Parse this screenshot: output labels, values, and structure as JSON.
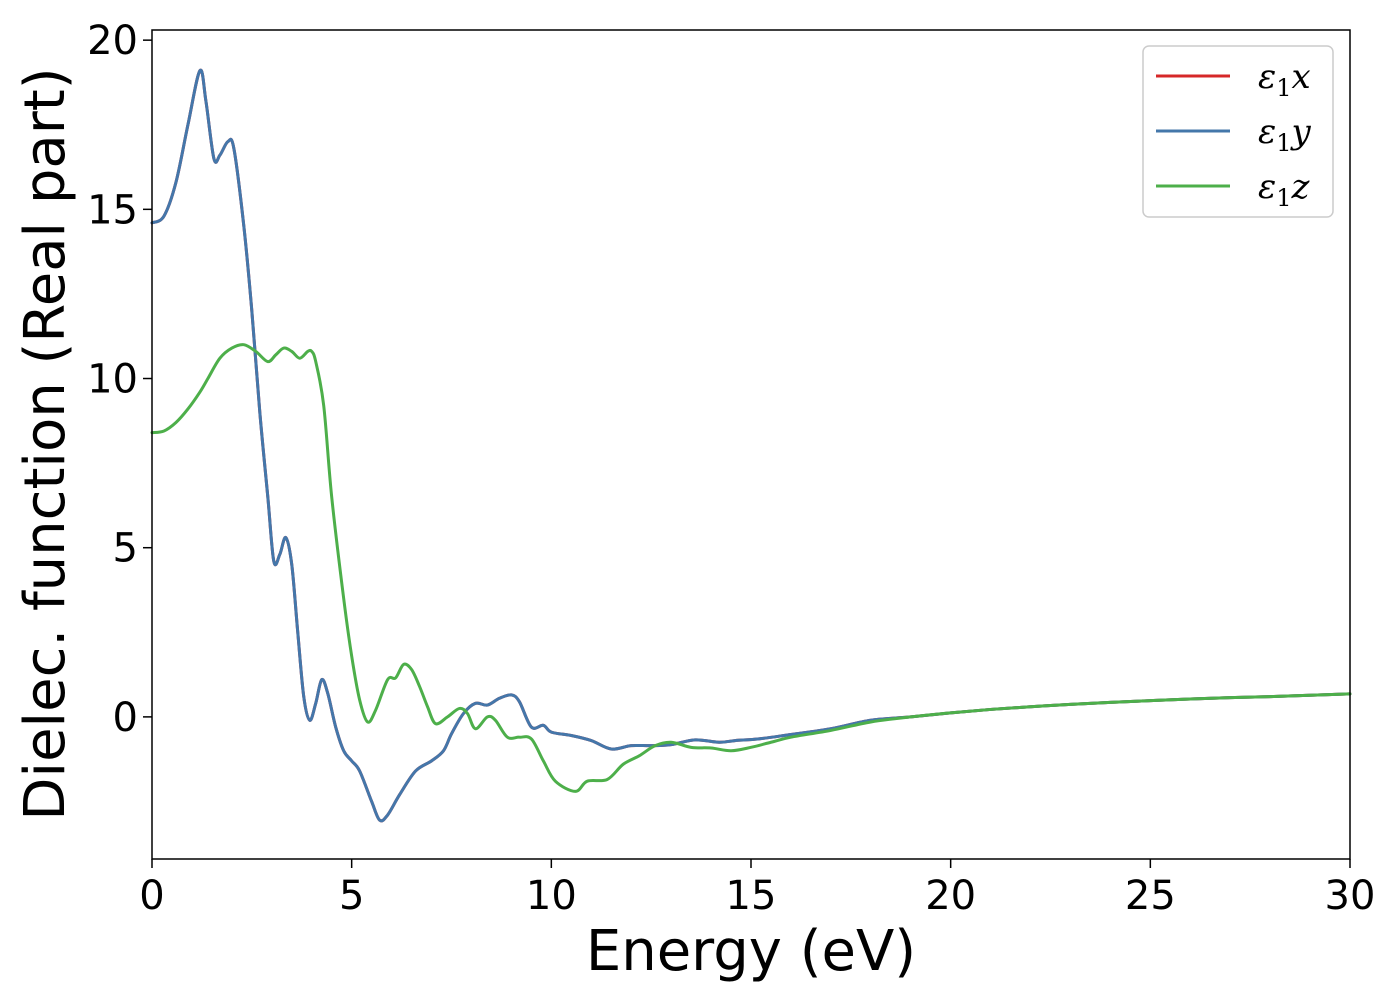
{
  "chart_data": {
    "type": "line",
    "title": "",
    "xlabel": "Energy (eV)",
    "ylabel": "Dielec. function (Real part)",
    "xlim": [
      0,
      30
    ],
    "ylim": [
      -4.2,
      20.3
    ],
    "xticks": [
      0,
      5,
      10,
      15,
      20,
      25,
      30
    ],
    "yticks": [
      0,
      5,
      10,
      15,
      20
    ],
    "xtick_labels": [
      "0",
      "5",
      "10",
      "15",
      "20",
      "25",
      "30"
    ],
    "ytick_labels": [
      "0",
      "5",
      "10",
      "15",
      "20"
    ],
    "grid": false,
    "legend": {
      "placement": "top-right",
      "entries": [
        {
          "symbol": "ε",
          "sub": "1",
          "var": "x",
          "color": "#d62728"
        },
        {
          "symbol": "ε",
          "sub": "1",
          "var": "y",
          "color": "#4477aa"
        },
        {
          "symbol": "ε",
          "sub": "1",
          "var": "z",
          "color": "#4daf4a"
        }
      ]
    },
    "series": [
      {
        "key": "x",
        "color": "#d62728",
        "points": [
          [
            0,
            14.6
          ],
          [
            0.3,
            14.8
          ],
          [
            0.6,
            15.8
          ],
          [
            0.9,
            17.5
          ],
          [
            1.2,
            19.1
          ],
          [
            1.35,
            18.2
          ],
          [
            1.55,
            16.5
          ],
          [
            1.7,
            16.6
          ],
          [
            1.9,
            17.0
          ],
          [
            2.05,
            16.8
          ],
          [
            2.3,
            14.5
          ],
          [
            2.5,
            12.0
          ],
          [
            2.7,
            9.0
          ],
          [
            2.9,
            6.5
          ],
          [
            3.05,
            4.6
          ],
          [
            3.2,
            4.8
          ],
          [
            3.35,
            5.3
          ],
          [
            3.5,
            4.5
          ],
          [
            3.65,
            2.5
          ],
          [
            3.8,
            0.6
          ],
          [
            3.95,
            -0.1
          ],
          [
            4.1,
            0.4
          ],
          [
            4.25,
            1.1
          ],
          [
            4.4,
            0.7
          ],
          [
            4.6,
            -0.3
          ],
          [
            4.8,
            -1.0
          ],
          [
            5.0,
            -1.3
          ],
          [
            5.2,
            -1.6
          ],
          [
            5.5,
            -2.5
          ],
          [
            5.7,
            -3.05
          ],
          [
            5.9,
            -2.9
          ],
          [
            6.2,
            -2.3
          ],
          [
            6.6,
            -1.6
          ],
          [
            7.0,
            -1.3
          ],
          [
            7.3,
            -1.0
          ],
          [
            7.5,
            -0.5
          ],
          [
            7.8,
            0.1
          ],
          [
            8.1,
            0.4
          ],
          [
            8.4,
            0.35
          ],
          [
            8.7,
            0.55
          ],
          [
            9.0,
            0.65
          ],
          [
            9.2,
            0.45
          ],
          [
            9.5,
            -0.3
          ],
          [
            9.8,
            -0.25
          ],
          [
            10.0,
            -0.45
          ],
          [
            10.5,
            -0.55
          ],
          [
            11.0,
            -0.7
          ],
          [
            11.5,
            -0.95
          ],
          [
            12.0,
            -0.85
          ],
          [
            12.5,
            -0.85
          ],
          [
            13.0,
            -0.82
          ],
          [
            13.6,
            -0.68
          ],
          [
            14.2,
            -0.75
          ],
          [
            14.6,
            -0.7
          ],
          [
            15.2,
            -0.65
          ],
          [
            16.0,
            -0.52
          ],
          [
            17.0,
            -0.35
          ],
          [
            18.0,
            -0.1
          ],
          [
            19.0,
            0.0
          ],
          [
            20.0,
            0.12
          ],
          [
            21.0,
            0.22
          ],
          [
            22.0,
            0.3
          ],
          [
            23.0,
            0.37
          ],
          [
            24.0,
            0.43
          ],
          [
            25.0,
            0.48
          ],
          [
            26.0,
            0.53
          ],
          [
            27.0,
            0.57
          ],
          [
            28.0,
            0.6
          ],
          [
            29.0,
            0.64
          ],
          [
            30.0,
            0.68
          ]
        ]
      },
      {
        "key": "y",
        "color": "#4477aa",
        "points": [
          [
            0,
            14.6
          ],
          [
            0.3,
            14.8
          ],
          [
            0.6,
            15.8
          ],
          [
            0.9,
            17.5
          ],
          [
            1.2,
            19.1
          ],
          [
            1.35,
            18.2
          ],
          [
            1.55,
            16.5
          ],
          [
            1.7,
            16.6
          ],
          [
            1.9,
            17.0
          ],
          [
            2.05,
            16.8
          ],
          [
            2.3,
            14.5
          ],
          [
            2.5,
            12.0
          ],
          [
            2.7,
            9.0
          ],
          [
            2.9,
            6.5
          ],
          [
            3.05,
            4.6
          ],
          [
            3.2,
            4.8
          ],
          [
            3.35,
            5.3
          ],
          [
            3.5,
            4.5
          ],
          [
            3.65,
            2.5
          ],
          [
            3.8,
            0.6
          ],
          [
            3.95,
            -0.1
          ],
          [
            4.1,
            0.4
          ],
          [
            4.25,
            1.1
          ],
          [
            4.4,
            0.7
          ],
          [
            4.6,
            -0.3
          ],
          [
            4.8,
            -1.0
          ],
          [
            5.0,
            -1.3
          ],
          [
            5.2,
            -1.6
          ],
          [
            5.5,
            -2.5
          ],
          [
            5.7,
            -3.05
          ],
          [
            5.9,
            -2.9
          ],
          [
            6.2,
            -2.3
          ],
          [
            6.6,
            -1.6
          ],
          [
            7.0,
            -1.3
          ],
          [
            7.3,
            -1.0
          ],
          [
            7.5,
            -0.5
          ],
          [
            7.8,
            0.1
          ],
          [
            8.1,
            0.4
          ],
          [
            8.4,
            0.35
          ],
          [
            8.7,
            0.55
          ],
          [
            9.0,
            0.65
          ],
          [
            9.2,
            0.45
          ],
          [
            9.5,
            -0.3
          ],
          [
            9.8,
            -0.25
          ],
          [
            10.0,
            -0.45
          ],
          [
            10.5,
            -0.55
          ],
          [
            11.0,
            -0.7
          ],
          [
            11.5,
            -0.95
          ],
          [
            12.0,
            -0.85
          ],
          [
            12.5,
            -0.85
          ],
          [
            13.0,
            -0.82
          ],
          [
            13.6,
            -0.68
          ],
          [
            14.2,
            -0.75
          ],
          [
            14.6,
            -0.7
          ],
          [
            15.2,
            -0.65
          ],
          [
            16.0,
            -0.52
          ],
          [
            17.0,
            -0.35
          ],
          [
            18.0,
            -0.1
          ],
          [
            19.0,
            0.0
          ],
          [
            20.0,
            0.12
          ],
          [
            21.0,
            0.22
          ],
          [
            22.0,
            0.3
          ],
          [
            23.0,
            0.37
          ],
          [
            24.0,
            0.43
          ],
          [
            25.0,
            0.48
          ],
          [
            26.0,
            0.53
          ],
          [
            27.0,
            0.57
          ],
          [
            28.0,
            0.6
          ],
          [
            29.0,
            0.64
          ],
          [
            30.0,
            0.68
          ]
        ]
      },
      {
        "key": "z",
        "color": "#4daf4a",
        "points": [
          [
            0,
            8.4
          ],
          [
            0.3,
            8.45
          ],
          [
            0.6,
            8.7
          ],
          [
            0.9,
            9.1
          ],
          [
            1.2,
            9.6
          ],
          [
            1.4,
            10.0
          ],
          [
            1.7,
            10.6
          ],
          [
            2.0,
            10.9
          ],
          [
            2.3,
            11.0
          ],
          [
            2.6,
            10.8
          ],
          [
            2.9,
            10.5
          ],
          [
            3.1,
            10.7
          ],
          [
            3.3,
            10.9
          ],
          [
            3.5,
            10.8
          ],
          [
            3.7,
            10.6
          ],
          [
            3.9,
            10.8
          ],
          [
            4.0,
            10.8
          ],
          [
            4.1,
            10.5
          ],
          [
            4.3,
            9.2
          ],
          [
            4.5,
            6.5
          ],
          [
            4.8,
            3.5
          ],
          [
            5.0,
            1.8
          ],
          [
            5.2,
            0.5
          ],
          [
            5.4,
            -0.15
          ],
          [
            5.6,
            0.2
          ],
          [
            5.9,
            1.1
          ],
          [
            6.1,
            1.15
          ],
          [
            6.3,
            1.55
          ],
          [
            6.5,
            1.4
          ],
          [
            6.7,
            0.9
          ],
          [
            6.9,
            0.3
          ],
          [
            7.1,
            -0.2
          ],
          [
            7.4,
            0.0
          ],
          [
            7.7,
            0.25
          ],
          [
            7.9,
            0.1
          ],
          [
            8.1,
            -0.35
          ],
          [
            8.4,
            0.0
          ],
          [
            8.6,
            -0.1
          ],
          [
            8.9,
            -0.6
          ],
          [
            9.2,
            -0.6
          ],
          [
            9.5,
            -0.65
          ],
          [
            9.8,
            -1.3
          ],
          [
            10.1,
            -1.9
          ],
          [
            10.6,
            -2.2
          ],
          [
            10.9,
            -1.9
          ],
          [
            11.4,
            -1.85
          ],
          [
            11.8,
            -1.4
          ],
          [
            12.2,
            -1.15
          ],
          [
            12.6,
            -0.85
          ],
          [
            13.0,
            -0.75
          ],
          [
            13.5,
            -0.9
          ],
          [
            14.0,
            -0.92
          ],
          [
            14.5,
            -1.0
          ],
          [
            15.0,
            -0.9
          ],
          [
            15.5,
            -0.75
          ],
          [
            16.0,
            -0.6
          ],
          [
            17.0,
            -0.4
          ],
          [
            18.0,
            -0.15
          ],
          [
            19.0,
            0.0
          ],
          [
            20.0,
            0.12
          ],
          [
            21.0,
            0.22
          ],
          [
            22.0,
            0.3
          ],
          [
            23.0,
            0.37
          ],
          [
            24.0,
            0.43
          ],
          [
            25.0,
            0.48
          ],
          [
            26.0,
            0.53
          ],
          [
            27.0,
            0.57
          ],
          [
            28.0,
            0.6
          ],
          [
            29.0,
            0.64
          ],
          [
            30.0,
            0.68
          ]
        ]
      }
    ]
  }
}
